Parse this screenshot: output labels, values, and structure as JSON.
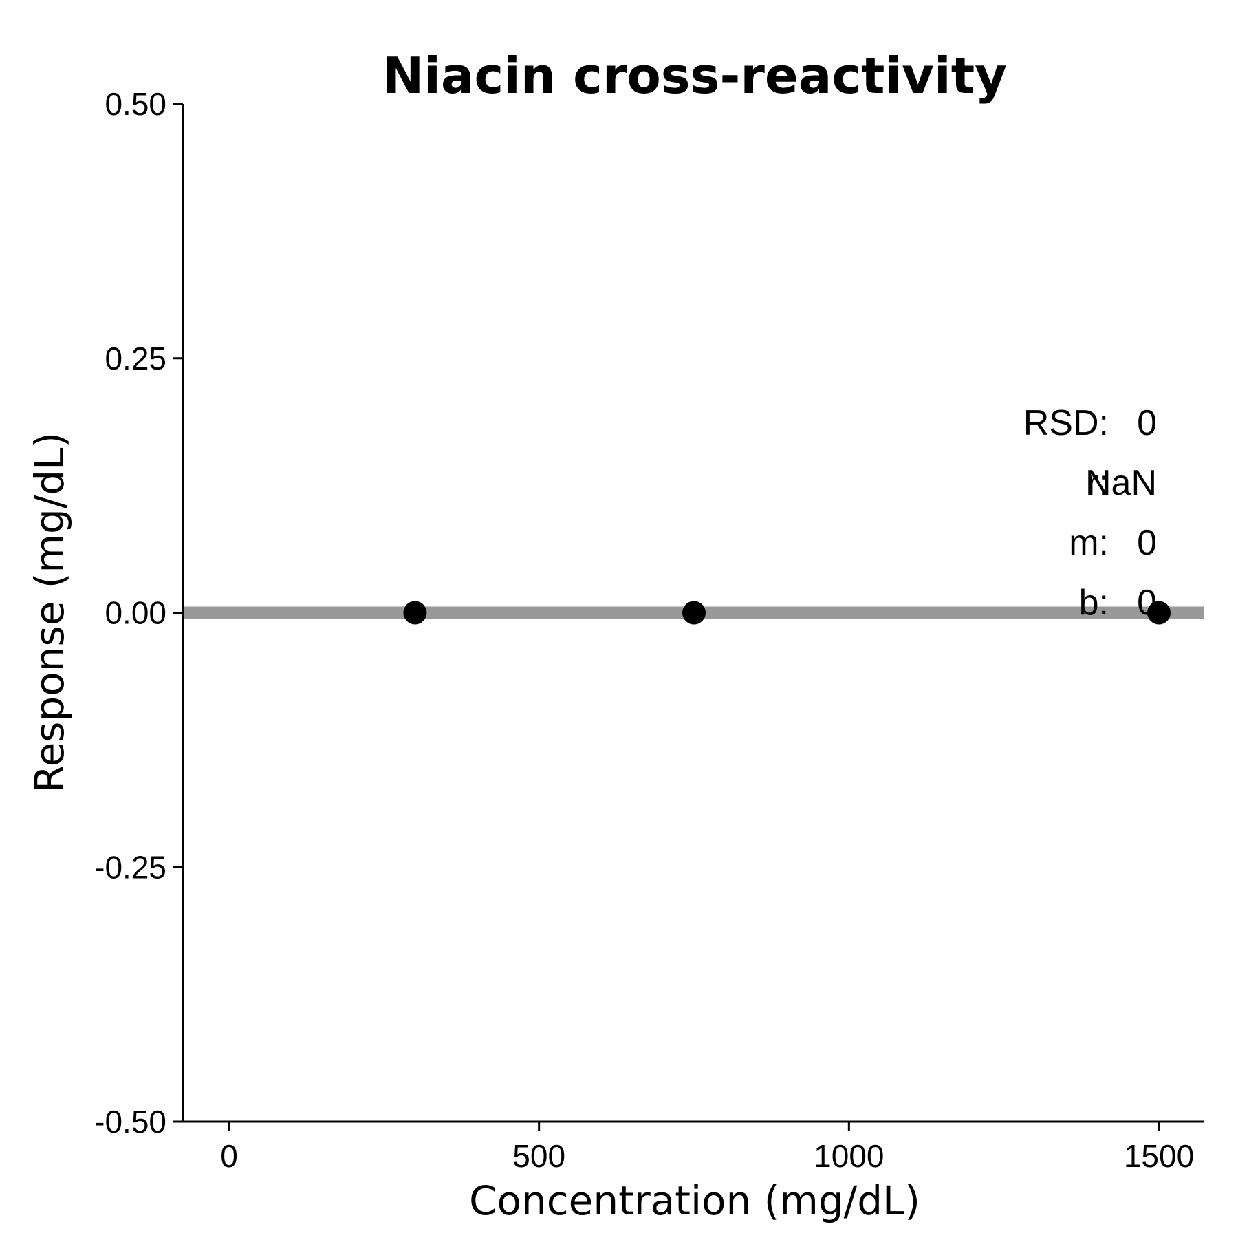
{
  "chart_data": {
    "type": "scatter",
    "title": "Niacin cross-reactivity",
    "xlabel": "Concentration (mg/dL)",
    "ylabel": "Response (mg/dL)",
    "xlim": [
      -75,
      1575
    ],
    "ylim": [
      -0.5,
      0.5
    ],
    "xticks": [
      0,
      500,
      1000,
      1500
    ],
    "xtick_labels": [
      "0",
      "500",
      "1000",
      "1500"
    ],
    "yticks": [
      -0.5,
      -0.25,
      0,
      0.25,
      0.5
    ],
    "ytick_labels": [
      "-0.50",
      "-0.25",
      "0.00",
      "0.25",
      "0.50"
    ],
    "grid": false,
    "series": [
      {
        "x": [
          300,
          750,
          1500
        ],
        "y": [
          0,
          0,
          0
        ],
        "color": "#000000"
      }
    ],
    "fit_line": {
      "slope": 0,
      "intercept": 0,
      "color": "#999999"
    },
    "annotations": [
      {
        "label": "RSD:",
        "value": "0"
      },
      {
        "label": "r:",
        "value": "NaN"
      },
      {
        "label": "m:",
        "value": "0"
      },
      {
        "label": "b:",
        "value": "0"
      }
    ],
    "annotation_placement": "right"
  }
}
